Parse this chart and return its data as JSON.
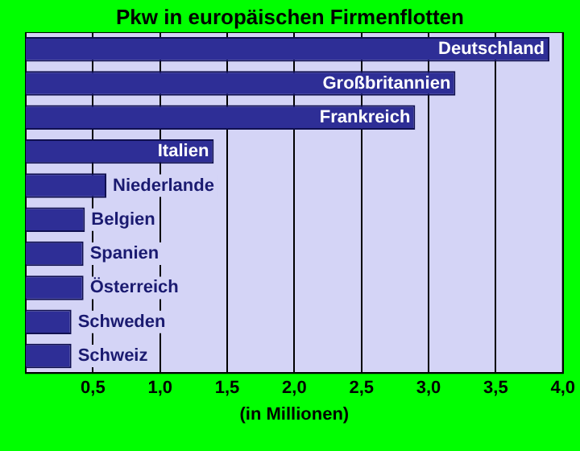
{
  "chart_data": {
    "type": "bar",
    "orientation": "horizontal",
    "title": "Pkw in europäischen Firmenflotten",
    "xlabel": "(in Millionen)",
    "categories": [
      "Deutschland",
      "Großbritannien",
      "Frankreich",
      "Italien",
      "Niederlande",
      "Belgien",
      "Spanien",
      "Österreich",
      "Schweden",
      "Schweiz"
    ],
    "values": [
      3.9,
      3.2,
      2.9,
      1.4,
      0.6,
      0.44,
      0.43,
      0.43,
      0.34,
      0.34
    ],
    "color": "#2e2e96",
    "xlim": [
      0,
      4
    ],
    "xticks": [
      {
        "value": 0.5,
        "label": "0,5"
      },
      {
        "value": 1,
        "label": "1,0"
      },
      {
        "value": 1.5,
        "label": "1,5"
      },
      {
        "value": 2,
        "label": "2,0"
      },
      {
        "value": 2.5,
        "label": "2,5"
      },
      {
        "value": 3,
        "label": "3,0"
      },
      {
        "value": 3.5,
        "label": "3,5"
      },
      {
        "value": 4,
        "label": "4,0"
      }
    ],
    "grid": "x",
    "tick_labels": "x",
    "legend": false
  }
}
